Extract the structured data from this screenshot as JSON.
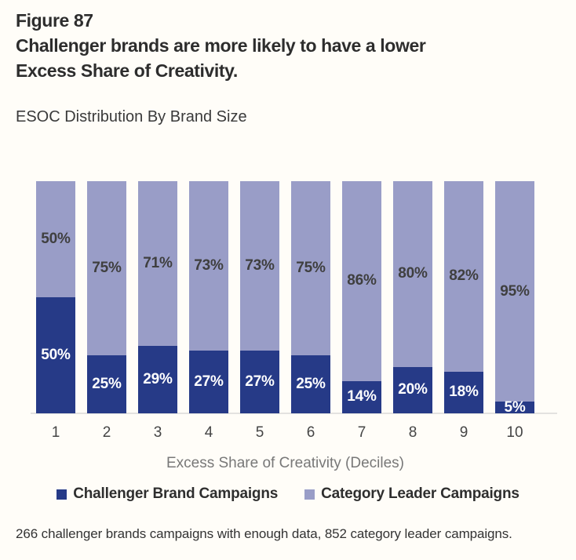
{
  "header": {
    "figure_label": "Figure 87",
    "title_line1": "Challenger brands are more likely to have a lower",
    "title_line2": "Excess Share of Creativity.",
    "subtitle": "ESOC Distribution By Brand Size"
  },
  "chart_data": {
    "type": "bar",
    "stacked": true,
    "orientation": "vertical",
    "categories": [
      "1",
      "2",
      "3",
      "4",
      "5",
      "6",
      "7",
      "8",
      "9",
      "10"
    ],
    "series": [
      {
        "name": "Challenger Brand Campaigns",
        "color": "#263A87",
        "values": [
          50,
          25,
          29,
          27,
          27,
          25,
          14,
          20,
          18,
          5
        ]
      },
      {
        "name": "Category Leader Campaigns",
        "color": "#999DC7",
        "values": [
          50,
          75,
          71,
          73,
          73,
          75,
          86,
          80,
          82,
          95
        ]
      }
    ],
    "value_label_suffix": "%",
    "xlabel": "Excess Share of Creativity (Deciles)",
    "ylabel": "",
    "ylim": [
      0,
      100
    ],
    "grid": false,
    "legend_position": "bottom"
  },
  "legend": {
    "items": [
      {
        "label": "Challenger Brand Campaigns",
        "color": "#263A87"
      },
      {
        "label": "Category Leader Campaigns",
        "color": "#999DC7"
      }
    ]
  },
  "footer": {
    "note": "266 challenger brands campaigns with enough data, 852 category leader campaigns."
  },
  "colors": {
    "background": "#FFFDF8",
    "heading_text": "#2D2D2D",
    "label_on_leader": "#3F3F3F",
    "label_on_challenger": "#FFFFFF",
    "axis_line": "#E3E2E0",
    "tick_text": "#454545",
    "axis_label_text": "#787878"
  }
}
